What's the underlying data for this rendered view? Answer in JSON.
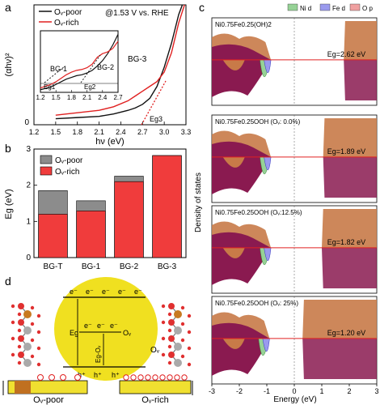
{
  "panel_labels": {
    "a": "a",
    "b": "b",
    "c": "c",
    "d": "d"
  },
  "colors": {
    "poor": "#111111",
    "rich": "#e02020",
    "poor_bar": "#8c8c8c",
    "rich_bar": "#f03c3c",
    "ni_d": "#96d296",
    "fe_d": "#9a9aee",
    "o_p": "#f0a0a0",
    "purple": "#8a1a50",
    "orange": "#c87a48",
    "yellow": "#f0e020"
  },
  "panel_a": {
    "ylabel": "(αhν)²",
    "xlabel": "hν (eV)",
    "note": "@1.53 V vs. RHE",
    "legend": [
      "Oᵥ-poor",
      "Oᵥ-rich"
    ],
    "ann": {
      "bg1": "BG-1",
      "bg2": "BG-2",
      "bg3": "BG-3",
      "eg1": "Eg1",
      "eg2": "Eg2",
      "eg3": "Eg3"
    }
  },
  "panel_b": {
    "ylabel": "Eg (eV)",
    "legend": [
      "Oᵥ-poor",
      "Oᵥ-rich"
    ]
  },
  "panel_c": {
    "ylabel": "Density of states",
    "xlabel": "Energy (eV)",
    "legend": [
      "Ni d",
      "Fe d",
      "O p"
    ],
    "subpanels": [
      {
        "title": "Ni0.75Fe0.25(OH)2",
        "eg": "Eg=2.62 eV"
      },
      {
        "title": "Ni0.75Fe0.25OOH (Oᵥ: 0.0%)",
        "eg": "Eg=1.89 eV"
      },
      {
        "title": "Ni0.75Fe0.25OOH (Oᵥ:12.5%)",
        "eg": "Eg=1.82 eV"
      },
      {
        "title": "Ni0.75Fe0.25OOH (Oᵥ: 25%)",
        "eg": "Eg=1.20 eV"
      }
    ]
  },
  "panel_d": {
    "electron": "e⁻",
    "hole": "h⁺",
    "eg": "Eg",
    "eg_o": "Eg-Oᵥ",
    "ov": "Oᵥ",
    "poor_label": "Oᵥ-poor",
    "rich_label": "Oᵥ-rich"
  },
  "chart_data": [
    {
      "type": "line",
      "panel": "a",
      "xlabel": "hν (eV)",
      "ylabel": "(αhν)²",
      "xlim": [
        1.2,
        3.3
      ],
      "xticks": [
        1.2,
        1.5,
        1.8,
        2.1,
        2.4,
        2.7,
        3.0,
        3.3
      ],
      "ylim": [
        0,
        1
      ],
      "series": [
        {
          "name": "Oᵥ-poor",
          "x": [
            1.5,
            1.8,
            2.1,
            2.3,
            2.5,
            2.6,
            2.7,
            2.8,
            2.9,
            3.0,
            3.1,
            3.2,
            3.25
          ],
          "y": [
            0.05,
            0.06,
            0.07,
            0.09,
            0.12,
            0.14,
            0.17,
            0.22,
            0.32,
            0.48,
            0.68,
            0.92,
            1.0
          ]
        },
        {
          "name": "Oᵥ-rich",
          "x": [
            1.5,
            1.8,
            2.1,
            2.3,
            2.5,
            2.6,
            2.7,
            2.8,
            2.9,
            3.0,
            3.1,
            3.2,
            3.28
          ],
          "y": [
            0.08,
            0.1,
            0.12,
            0.15,
            0.2,
            0.24,
            0.28,
            0.32,
            0.36,
            0.44,
            0.6,
            0.85,
            1.0
          ]
        }
      ],
      "inset": {
        "xlim": [
          1.2,
          2.7
        ],
        "xticks": [
          1.2,
          1.5,
          1.8,
          2.1,
          2.4,
          2.7
        ],
        "ylim": [
          0.9,
          1.6
        ],
        "series": [
          {
            "name": "Oᵥ-poor",
            "x": [
              1.2,
              1.4,
              1.5,
              1.6,
              1.7,
              1.8,
              1.9,
              2.0,
              2.1,
              2.2,
              2.3,
              2.4,
              2.5,
              2.6,
              2.7
            ],
            "y": [
              0.93,
              0.96,
              0.99,
              1.02,
              1.05,
              1.07,
              1.09,
              1.1,
              1.12,
              1.15,
              1.2,
              1.26,
              1.34,
              1.44,
              1.56
            ]
          },
          {
            "name": "Oᵥ-rich",
            "x": [
              1.2,
              1.4,
              1.5,
              1.6,
              1.7,
              1.8,
              1.9,
              2.0,
              2.1,
              2.2,
              2.3,
              2.4,
              2.5,
              2.6,
              2.7
            ],
            "y": [
              0.95,
              0.99,
              1.02,
              1.06,
              1.1,
              1.13,
              1.15,
              1.16,
              1.18,
              1.22,
              1.3,
              1.34,
              1.36,
              1.4,
              1.48
            ]
          }
        ]
      }
    },
    {
      "type": "bar",
      "panel": "b",
      "categories": [
        "BG-T",
        "BG-1",
        "BG-2",
        "BG-3"
      ],
      "ylabel": "Eg (eV)",
      "ylim": [
        0,
        3
      ],
      "yticks": [
        0,
        1,
        2,
        3
      ],
      "series": [
        {
          "name": "Oᵥ-poor",
          "values": [
            1.85,
            1.57,
            2.25,
            2.82
          ]
        },
        {
          "name": "Oᵥ-rich",
          "values": [
            1.2,
            1.29,
            2.1,
            2.82
          ]
        }
      ]
    },
    {
      "type": "area",
      "panel": "c",
      "xlabel": "Energy (eV)",
      "ylabel": "Density of states",
      "xlim": [
        -3,
        3
      ],
      "xticks": [
        -3,
        -2,
        -1,
        0,
        1,
        2,
        3
      ]
    }
  ]
}
